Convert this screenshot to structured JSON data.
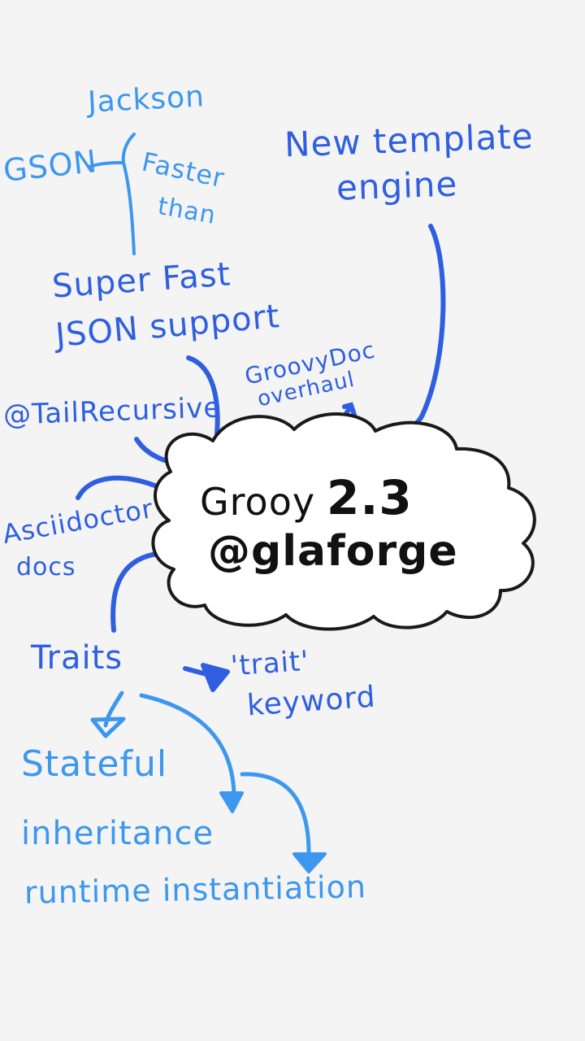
{
  "colors": {
    "background": "#f4f4f5",
    "light_blue": "#3d97ee",
    "dark_blue": "#2f5fe0",
    "black": "#111111"
  },
  "center": {
    "line1": "Grooy",
    "version": "2.3",
    "handle": "@glaforge"
  },
  "nodes": {
    "jackson": "Jackson",
    "gson": "GSON",
    "faster": "Faster",
    "than": "than",
    "json1": "Super Fast",
    "json2": "JSON support",
    "template1": "New template",
    "template2": "engine",
    "groovydoc1": "GroovyDoc",
    "groovydoc2": "overhaul",
    "tailrec": "@TailRecursive",
    "asciidoc1": "Asciidoctor",
    "asciidoc2": "docs",
    "traits": "Traits",
    "trait_kw1": "'trait'",
    "trait_kw2": "keyword",
    "stateful": "Stateful",
    "inheritance": "inheritance",
    "runtime": "runtime instantiation"
  }
}
